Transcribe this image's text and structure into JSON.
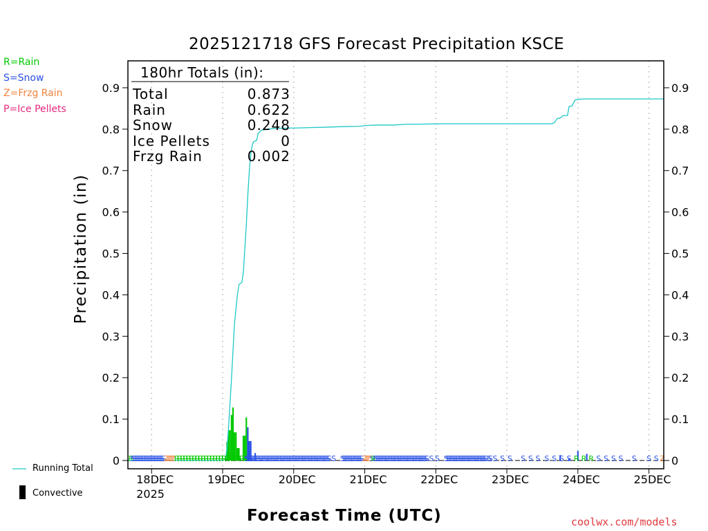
{
  "colors": {
    "rain": "#00c800",
    "snow": "#2850e6",
    "frzg_rain": "#f0823c",
    "ice_pellets": "#e6287d",
    "running_total": "#1ec8c8",
    "credit": "#e0393e"
  },
  "type_legend": [
    {
      "label": "R=Rain",
      "color": "#00c800"
    },
    {
      "label": "S=Snow",
      "color": "#2850e6"
    },
    {
      "label": "Z=Frzg Rain",
      "color": "#f0823c"
    },
    {
      "label": "P=Ice Pellets",
      "color": "#e6287d"
    }
  ],
  "bottom_legend": {
    "running_total": "Running Total",
    "convective": "Convective"
  },
  "credit": "coolwx.com/models",
  "totals": {
    "header": "180hr Totals (in):",
    "rows": [
      {
        "label": "Total",
        "value": "0.873"
      },
      {
        "label": "Rain",
        "value": "0.622"
      },
      {
        "label": "Snow",
        "value": "0.248"
      },
      {
        "label": "Ice Pellets",
        "value": "0"
      },
      {
        "label": "Frzg Rain",
        "value": "0.002"
      }
    ]
  },
  "chart_data": {
    "type": "bar",
    "title": "2025121718 GFS Forecast Precipitation KSCE",
    "xlabel": "Forecast Time (UTC)",
    "ylabel": "Precipitation (in)",
    "x_unit": "forecast hour",
    "xlim": [
      -2,
      179
    ],
    "ylim": [
      -0.02,
      0.965
    ],
    "y_ticks": [
      0,
      0.1,
      0.2,
      0.3,
      0.4,
      0.5,
      0.6,
      0.7,
      0.8,
      0.9
    ],
    "y_tick_labels": [
      "0",
      "0.1",
      "0.2",
      "0.3",
      "0.4",
      "0.5",
      "0.6",
      "0.7",
      "0.8",
      "0.9"
    ],
    "x_ticks": [
      {
        "hour": 6,
        "label": "18DEC",
        "sub": "2025"
      },
      {
        "hour": 30,
        "label": "19DEC"
      },
      {
        "hour": 54,
        "label": "20DEC"
      },
      {
        "hour": 78,
        "label": "21DEC"
      },
      {
        "hour": 102,
        "label": "22DEC"
      },
      {
        "hour": 126,
        "label": "23DEC"
      },
      {
        "hour": 150,
        "label": "24DEC"
      },
      {
        "hour": 174,
        "label": "25DEC"
      }
    ],
    "grid": "vertical dotted at day boundaries",
    "precip_series": [
      {
        "name": "Rain",
        "color": "#00c800",
        "bars": [
          {
            "h": 31,
            "v": 0.005
          },
          {
            "h": 31.5,
            "v": 0.045
          },
          {
            "h": 32,
            "v": 0.073
          },
          {
            "h": 32.5,
            "v": 0.073
          },
          {
            "h": 33,
            "v": 0.11
          },
          {
            "h": 33.5,
            "v": 0.128
          },
          {
            "h": 34,
            "v": 0.068
          },
          {
            "h": 34.5,
            "v": 0.068
          },
          {
            "h": 35,
            "v": 0.03
          },
          {
            "h": 35.5,
            "v": 0.03
          },
          {
            "h": 36,
            "v": 0.005
          },
          {
            "h": 37,
            "v": 0.06
          },
          {
            "h": 37.5,
            "v": 0.06
          },
          {
            "h": 38,
            "v": 0.104
          }
        ]
      },
      {
        "name": "Snow",
        "color": "#2850e6",
        "bars": [
          {
            "h": 38.5,
            "v": 0.08
          },
          {
            "h": 39,
            "v": 0.047
          },
          {
            "h": 39.5,
            "v": 0.047
          },
          {
            "h": 40,
            "v": 0.003
          },
          {
            "h": 41,
            "v": 0.018
          },
          {
            "h": 43,
            "v": 0.002
          },
          {
            "h": 45,
            "v": 0.002
          },
          {
            "h": 48,
            "v": 0.001
          },
          {
            "h": 51,
            "v": 0.001
          },
          {
            "h": 144,
            "v": 0.013
          },
          {
            "h": 147,
            "v": 0.005
          },
          {
            "h": 150,
            "v": 0.023
          },
          {
            "h": 153,
            "v": 0.016
          }
        ]
      }
    ],
    "running_total": {
      "name": "Running Total",
      "color": "#1ec8c8",
      "points": [
        [
          -2,
          0
        ],
        [
          30,
          0
        ],
        [
          31,
          0.005
        ],
        [
          31.5,
          0.03
        ],
        [
          32,
          0.08
        ],
        [
          33,
          0.2
        ],
        [
          34,
          0.33
        ],
        [
          35,
          0.4
        ],
        [
          35.5,
          0.425
        ],
        [
          36.5,
          0.43
        ],
        [
          37,
          0.455
        ],
        [
          38,
          0.57
        ],
        [
          38.5,
          0.64
        ],
        [
          39,
          0.7
        ],
        [
          39.5,
          0.74
        ],
        [
          40,
          0.762
        ],
        [
          40.5,
          0.77
        ],
        [
          41.5,
          0.773
        ],
        [
          42,
          0.79
        ],
        [
          43,
          0.797
        ],
        [
          45,
          0.8
        ],
        [
          48,
          0.802
        ],
        [
          56,
          0.803
        ],
        [
          66,
          0.805
        ],
        [
          70,
          0.806
        ],
        [
          76,
          0.807
        ],
        [
          79,
          0.809
        ],
        [
          82,
          0.81
        ],
        [
          88,
          0.81
        ],
        [
          92,
          0.812
        ],
        [
          96,
          0.812
        ],
        [
          104,
          0.813
        ],
        [
          112,
          0.813
        ],
        [
          120,
          0.813
        ],
        [
          130,
          0.813
        ],
        [
          141,
          0.813
        ],
        [
          142,
          0.815
        ],
        [
          143,
          0.826
        ],
        [
          144,
          0.827
        ],
        [
          145,
          0.833
        ],
        [
          146.5,
          0.833
        ],
        [
          147,
          0.855
        ],
        [
          148,
          0.856
        ],
        [
          149,
          0.87
        ],
        [
          150,
          0.872
        ],
        [
          152,
          0.873
        ],
        [
          179,
          0.873
        ]
      ]
    },
    "type_strip": [
      {
        "h": -1,
        "t": "R"
      },
      {
        "h": -0.5,
        "t": "S"
      },
      {
        "h": 0,
        "t": "S"
      },
      {
        "h": 0.5,
        "t": "S"
      },
      {
        "h": 1,
        "t": "S"
      },
      {
        "h": 1.5,
        "t": "S"
      },
      {
        "h": 2,
        "t": "S"
      },
      {
        "h": 2.5,
        "t": "S"
      },
      {
        "h": 3,
        "t": "S"
      },
      {
        "h": 3.5,
        "t": "S"
      },
      {
        "h": 4,
        "t": "S"
      },
      {
        "h": 4.5,
        "t": "S"
      },
      {
        "h": 5,
        "t": "S"
      },
      {
        "h": 5.5,
        "t": "S"
      },
      {
        "h": 6,
        "t": "S"
      },
      {
        "h": 6.5,
        "t": "S"
      },
      {
        "h": 7,
        "t": "S"
      },
      {
        "h": 7.5,
        "t": "S"
      },
      {
        "h": 8,
        "t": "S"
      },
      {
        "h": 8.5,
        "t": "S"
      },
      {
        "h": 9,
        "t": "S"
      },
      {
        "h": 9.5,
        "t": "S"
      },
      {
        "h": 10,
        "t": "S"
      },
      {
        "h": 11,
        "t": "Z"
      },
      {
        "h": 11.5,
        "t": "Z"
      },
      {
        "h": 12,
        "t": "Z"
      },
      {
        "h": 12.5,
        "t": "Z"
      },
      {
        "h": 13,
        "t": "Z"
      },
      {
        "h": 13.5,
        "t": "Z"
      },
      {
        "h": 14.5,
        "t": "R"
      },
      {
        "h": 15.5,
        "t": "R"
      },
      {
        "h": 16.5,
        "t": "R"
      },
      {
        "h": 17.5,
        "t": "R"
      },
      {
        "h": 18.5,
        "t": "R"
      },
      {
        "h": 19.5,
        "t": "R"
      },
      {
        "h": 20.5,
        "t": "R"
      },
      {
        "h": 21.5,
        "t": "R"
      },
      {
        "h": 22.5,
        "t": "R"
      },
      {
        "h": 23.5,
        "t": "R"
      },
      {
        "h": 24.5,
        "t": "R"
      },
      {
        "h": 25.5,
        "t": "R"
      },
      {
        "h": 26.5,
        "t": "R"
      },
      {
        "h": 27.5,
        "t": "R"
      },
      {
        "h": 28.5,
        "t": "R"
      },
      {
        "h": 29.5,
        "t": "R"
      },
      {
        "h": 30.5,
        "t": "R"
      },
      {
        "h": 31.5,
        "t": "R"
      },
      {
        "h": 32.5,
        "t": "R"
      },
      {
        "h": 33.5,
        "t": "R"
      },
      {
        "h": 34.5,
        "t": "R"
      },
      {
        "h": 35.5,
        "t": "R"
      },
      {
        "h": 36.5,
        "t": "R"
      },
      {
        "h": 37.5,
        "t": "R"
      },
      {
        "h": 38,
        "t": "S"
      },
      {
        "h": 38.5,
        "t": "S"
      },
      {
        "h": 39,
        "t": "S"
      },
      {
        "h": 39.5,
        "t": "S"
      },
      {
        "h": 40,
        "t": "S"
      },
      {
        "h": 40.5,
        "t": "S"
      },
      {
        "h": 41,
        "t": "S"
      },
      {
        "h": 41.5,
        "t": "S"
      },
      {
        "h": 42,
        "t": "S"
      },
      {
        "h": 42.5,
        "t": "S"
      },
      {
        "h": 43,
        "t": "S"
      },
      {
        "h": 43.5,
        "t": "S"
      },
      {
        "h": 44,
        "t": "S"
      },
      {
        "h": 44.5,
        "t": "S"
      },
      {
        "h": 45,
        "t": "S"
      },
      {
        "h": 45.5,
        "t": "S"
      },
      {
        "h": 46,
        "t": "S"
      },
      {
        "h": 46.5,
        "t": "S"
      },
      {
        "h": 47,
        "t": "S"
      },
      {
        "h": 47.5,
        "t": "S"
      },
      {
        "h": 48,
        "t": "S"
      },
      {
        "h": 48.5,
        "t": "S"
      },
      {
        "h": 49,
        "t": "S"
      },
      {
        "h": 49.5,
        "t": "S"
      },
      {
        "h": 50,
        "t": "S"
      },
      {
        "h": 50.5,
        "t": "S"
      },
      {
        "h": 51,
        "t": "S"
      },
      {
        "h": 51.5,
        "t": "S"
      },
      {
        "h": 52,
        "t": "S"
      },
      {
        "h": 52.5,
        "t": "S"
      },
      {
        "h": 53,
        "t": "S"
      },
      {
        "h": 53.5,
        "t": "S"
      },
      {
        "h": 54,
        "t": "S"
      },
      {
        "h": 54.5,
        "t": "S"
      },
      {
        "h": 55,
        "t": "S"
      },
      {
        "h": 55.5,
        "t": "S"
      },
      {
        "h": 56,
        "t": "S"
      },
      {
        "h": 56.5,
        "t": "S"
      },
      {
        "h": 57,
        "t": "S"
      },
      {
        "h": 57.5,
        "t": "S"
      },
      {
        "h": 58,
        "t": "S"
      },
      {
        "h": 58.5,
        "t": "S"
      },
      {
        "h": 59,
        "t": "S"
      },
      {
        "h": 59.5,
        "t": "S"
      },
      {
        "h": 60,
        "t": "S"
      },
      {
        "h": 60.5,
        "t": "S"
      },
      {
        "h": 61,
        "t": "S"
      },
      {
        "h": 61.5,
        "t": "S"
      },
      {
        "h": 62,
        "t": "S"
      },
      {
        "h": 62.5,
        "t": "S"
      },
      {
        "h": 63,
        "t": "S"
      },
      {
        "h": 63.5,
        "t": "S"
      },
      {
        "h": 64,
        "t": "S"
      },
      {
        "h": 64.5,
        "t": "S"
      },
      {
        "h": 65,
        "t": "S"
      },
      {
        "h": 65.5,
        "t": "S"
      },
      {
        "h": 66,
        "t": "S"
      },
      {
        "h": 67.5,
        "t": "S"
      },
      {
        "h": 70.5,
        "t": "S"
      },
      {
        "h": 71,
        "t": "S"
      },
      {
        "h": 71.5,
        "t": "S"
      },
      {
        "h": 72,
        "t": "S"
      },
      {
        "h": 72.5,
        "t": "S"
      },
      {
        "h": 73,
        "t": "S"
      },
      {
        "h": 73.5,
        "t": "S"
      },
      {
        "h": 74,
        "t": "S"
      },
      {
        "h": 74.5,
        "t": "S"
      },
      {
        "h": 75,
        "t": "S"
      },
      {
        "h": 75.5,
        "t": "S"
      },
      {
        "h": 76,
        "t": "S"
      },
      {
        "h": 76.5,
        "t": "S"
      },
      {
        "h": 77,
        "t": "S"
      },
      {
        "h": 78,
        "t": "Z"
      },
      {
        "h": 78.5,
        "t": "Z"
      },
      {
        "h": 79,
        "t": "Z"
      },
      {
        "h": 79.5,
        "t": "Z"
      },
      {
        "h": 80.5,
        "t": "S"
      },
      {
        "h": 81,
        "t": "R"
      },
      {
        "h": 81.5,
        "t": "S"
      },
      {
        "h": 82,
        "t": "S"
      },
      {
        "h": 82.5,
        "t": "S"
      },
      {
        "h": 83,
        "t": "S"
      },
      {
        "h": 83.5,
        "t": "S"
      },
      {
        "h": 84,
        "t": "S"
      },
      {
        "h": 84.5,
        "t": "S"
      },
      {
        "h": 85,
        "t": "S"
      },
      {
        "h": 85.5,
        "t": "S"
      },
      {
        "h": 86,
        "t": "S"
      },
      {
        "h": 86.5,
        "t": "S"
      },
      {
        "h": 87,
        "t": "S"
      },
      {
        "h": 87.5,
        "t": "S"
      },
      {
        "h": 88,
        "t": "S"
      },
      {
        "h": 88.5,
        "t": "S"
      },
      {
        "h": 89,
        "t": "S"
      },
      {
        "h": 89.5,
        "t": "S"
      },
      {
        "h": 90,
        "t": "S"
      },
      {
        "h": 90.5,
        "t": "S"
      },
      {
        "h": 91,
        "t": "S"
      },
      {
        "h": 91.5,
        "t": "S"
      },
      {
        "h": 92,
        "t": "S"
      },
      {
        "h": 92.5,
        "t": "S"
      },
      {
        "h": 93,
        "t": "S"
      },
      {
        "h": 93.5,
        "t": "S"
      },
      {
        "h": 94,
        "t": "S"
      },
      {
        "h": 94.5,
        "t": "S"
      },
      {
        "h": 95,
        "t": "S"
      },
      {
        "h": 95.5,
        "t": "S"
      },
      {
        "h": 96,
        "t": "S"
      },
      {
        "h": 96.5,
        "t": "S"
      },
      {
        "h": 97,
        "t": "S"
      },
      {
        "h": 97.5,
        "t": "S"
      },
      {
        "h": 98,
        "t": "S"
      },
      {
        "h": 98.5,
        "t": "S"
      },
      {
        "h": 99,
        "t": "S"
      },
      {
        "h": 100.5,
        "t": "S"
      },
      {
        "h": 102.5,
        "t": "S"
      },
      {
        "h": 105.5,
        "t": "S"
      },
      {
        "h": 106,
        "t": "S"
      },
      {
        "h": 106.5,
        "t": "S"
      },
      {
        "h": 107,
        "t": "S"
      },
      {
        "h": 107.5,
        "t": "S"
      },
      {
        "h": 108,
        "t": "S"
      },
      {
        "h": 108.5,
        "t": "S"
      },
      {
        "h": 109,
        "t": "S"
      },
      {
        "h": 109.5,
        "t": "S"
      },
      {
        "h": 110,
        "t": "S"
      },
      {
        "h": 110.5,
        "t": "S"
      },
      {
        "h": 111,
        "t": "S"
      },
      {
        "h": 111.5,
        "t": "S"
      },
      {
        "h": 112,
        "t": "S"
      },
      {
        "h": 112.5,
        "t": "S"
      },
      {
        "h": 113,
        "t": "S"
      },
      {
        "h": 113.5,
        "t": "S"
      },
      {
        "h": 114,
        "t": "S"
      },
      {
        "h": 114.5,
        "t": "S"
      },
      {
        "h": 115,
        "t": "S"
      },
      {
        "h": 115.5,
        "t": "S"
      },
      {
        "h": 116,
        "t": "S"
      },
      {
        "h": 116.5,
        "t": "S"
      },
      {
        "h": 117,
        "t": "S"
      },
      {
        "h": 117.5,
        "t": "S"
      },
      {
        "h": 118,
        "t": "S"
      },
      {
        "h": 118.5,
        "t": "S"
      },
      {
        "h": 119,
        "t": "S"
      },
      {
        "h": 120,
        "t": "S"
      },
      {
        "h": 120.5,
        "t": "S"
      },
      {
        "h": 122,
        "t": "S"
      },
      {
        "h": 124.5,
        "t": "S"
      },
      {
        "h": 127,
        "t": "S"
      },
      {
        "h": 131.5,
        "t": "S"
      },
      {
        "h": 134,
        "t": "S"
      },
      {
        "h": 136.5,
        "t": "S"
      },
      {
        "h": 139.5,
        "t": "S"
      },
      {
        "h": 142,
        "t": "S"
      },
      {
        "h": 144.5,
        "t": "S"
      },
      {
        "h": 147,
        "t": "S"
      },
      {
        "h": 149.5,
        "t": "R"
      },
      {
        "h": 152,
        "t": "R"
      },
      {
        "h": 154.5,
        "t": "R"
      },
      {
        "h": 157,
        "t": "S"
      },
      {
        "h": 159.5,
        "t": "S"
      },
      {
        "h": 162,
        "t": "S"
      },
      {
        "h": 164.5,
        "t": "S"
      },
      {
        "h": 169,
        "t": "S"
      },
      {
        "h": 174,
        "t": "S"
      },
      {
        "h": 176.5,
        "t": "S"
      },
      {
        "h": 178.5,
        "t": "Z"
      }
    ]
  }
}
